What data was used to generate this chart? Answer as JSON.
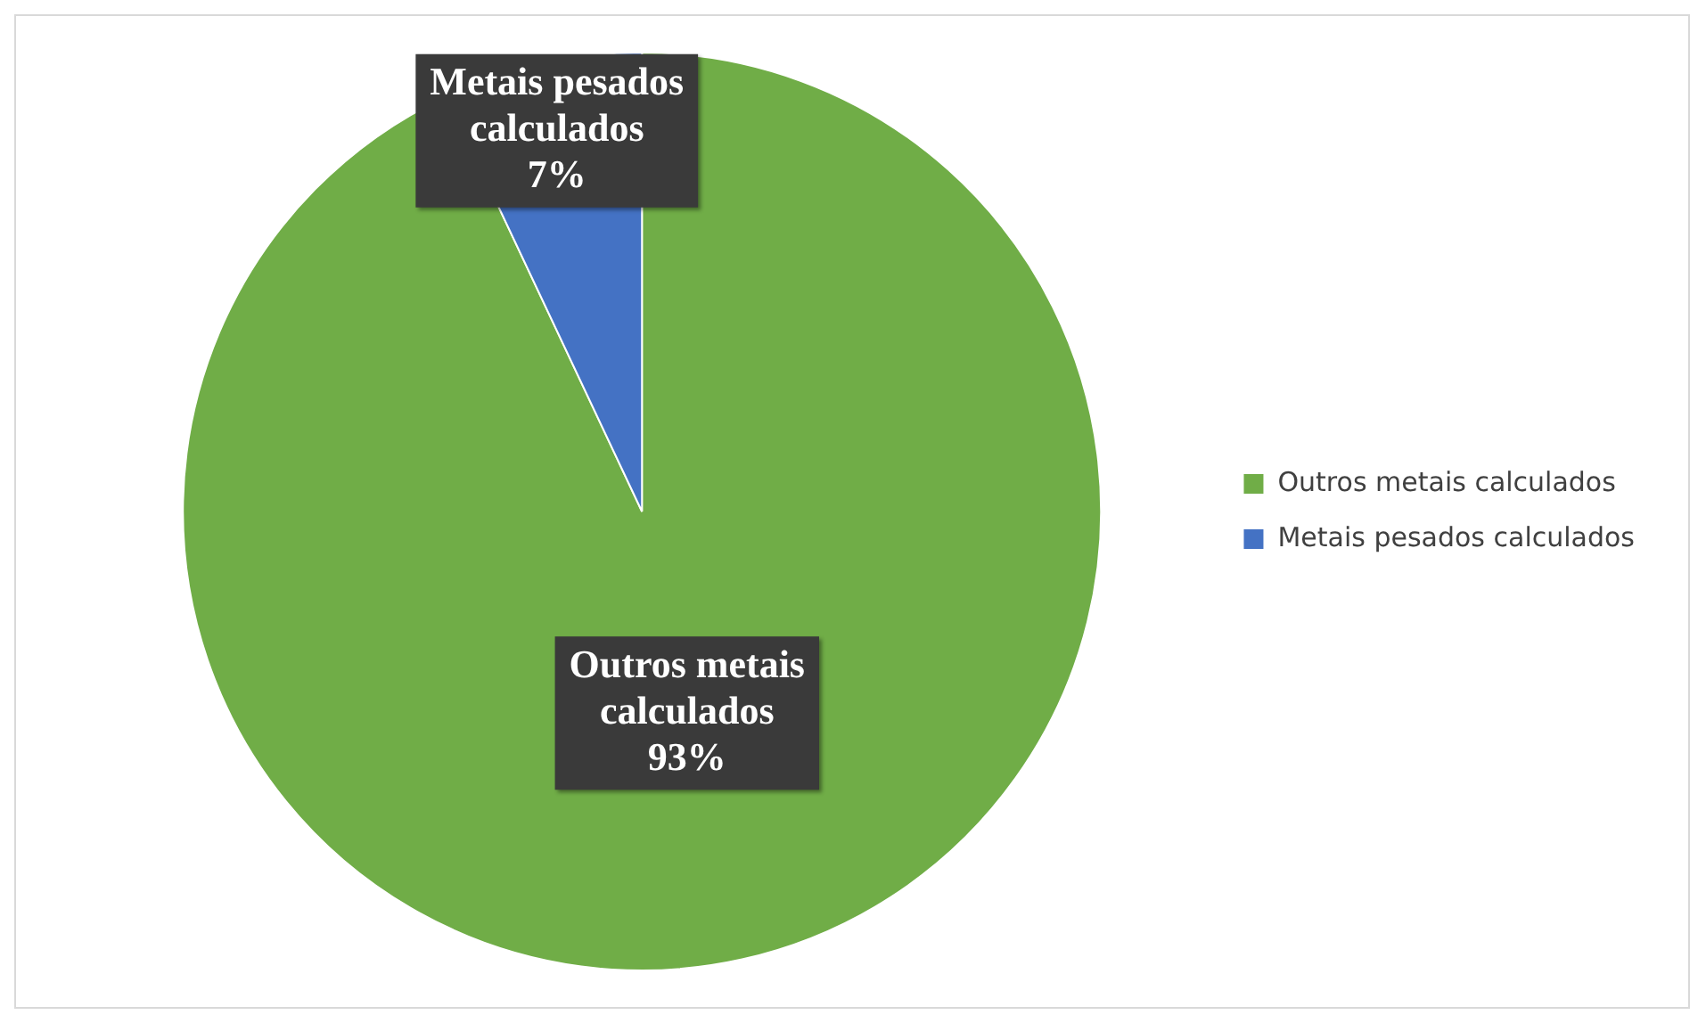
{
  "chart_data": {
    "type": "pie",
    "categories": [
      "Outros metais calculados",
      "Metais pesados calculados"
    ],
    "values": [
      93,
      7
    ],
    "colors": [
      "#70ad47",
      "#4472c4"
    ],
    "value_labels": [
      "93%",
      "7%"
    ],
    "legend": "right"
  }
}
